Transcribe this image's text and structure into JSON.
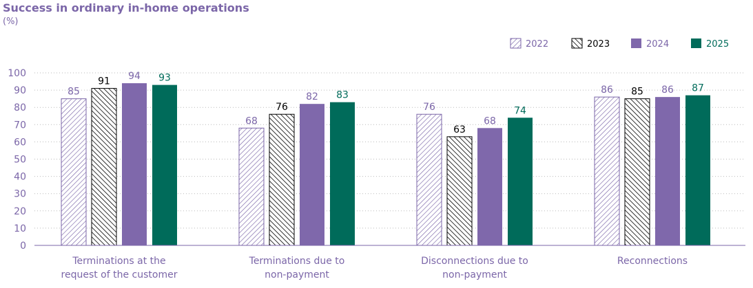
{
  "chart_data": {
    "type": "bar",
    "title": "Success in ordinary in-home operations",
    "subtitle": "(%)",
    "categories": [
      [
        "Terminations at the",
        "request of the customer"
      ],
      [
        "Terminations due to",
        "non-payment"
      ],
      [
        "Disconnections due to",
        "non-payment"
      ],
      [
        "Reconnections"
      ]
    ],
    "series": [
      {
        "name": "2022",
        "values": [
          85,
          68,
          76,
          86
        ],
        "color": "#7b66a8",
        "style": "hatch-light",
        "label_color": "#7b66a8"
      },
      {
        "name": "2023",
        "values": [
          91,
          76,
          63,
          85
        ],
        "color": "#000000",
        "style": "hatch-dark",
        "label_color": "#000000"
      },
      {
        "name": "2024",
        "values": [
          94,
          82,
          68,
          86
        ],
        "color": "#7f68ab",
        "style": "solid",
        "label_color": "#7b66a8"
      },
      {
        "name": "2025",
        "values": [
          93,
          83,
          74,
          87
        ],
        "color": "#006b5a",
        "style": "solid",
        "label_color": "#006b5a"
      }
    ],
    "ylim": [
      0,
      100
    ],
    "yticks": [
      0,
      10,
      20,
      30,
      40,
      50,
      60,
      70,
      80,
      90,
      100
    ],
    "grid": "dotted-horizontal",
    "legend_position": "top-right"
  }
}
